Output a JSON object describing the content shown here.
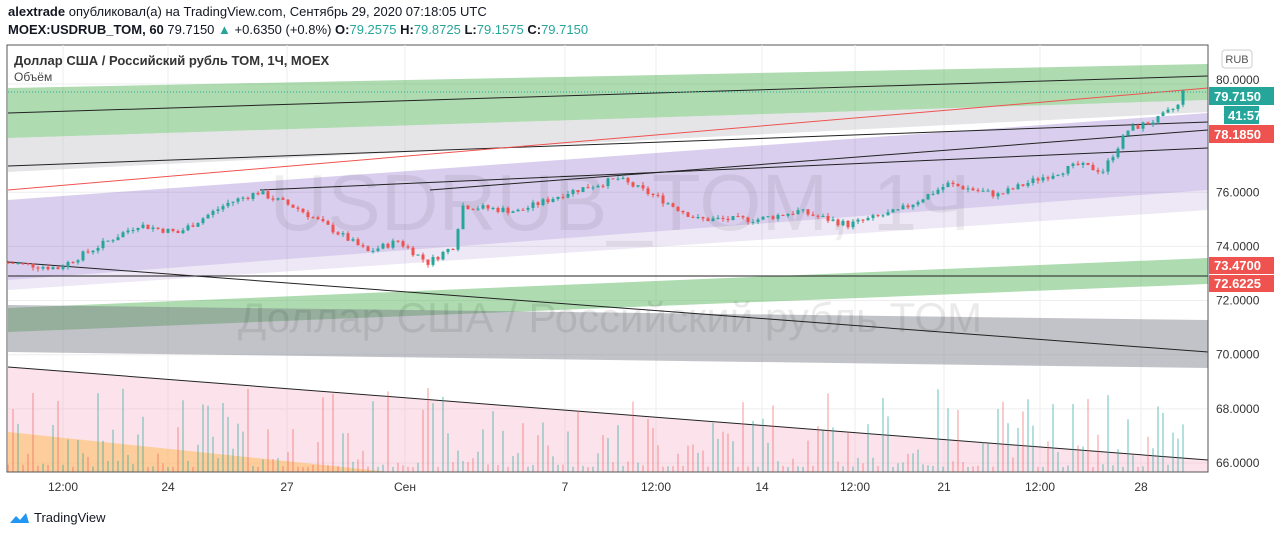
{
  "header": {
    "author": "alextrade",
    "published": "опубликовал(а) на TradingView.com, Сентябрь 29, 2020 07:18:05 UTC",
    "symbol": "MOEX:USDRUB_TOM, 60",
    "last": "79.7150",
    "change": "+0.6350 (+0.8%)",
    "o_label": "O:",
    "o": "79.2575",
    "h_label": "H:",
    "h": "79.8725",
    "l_label": "L:",
    "l": "79.1575",
    "c_label": "C:",
    "c": "79.7150"
  },
  "chart_title": "Доллар США / Российский рубль TOM, 1Ч, MOEX",
  "volume_label": "Объём",
  "watermark_symbol": "USDRUB_TOM, 1Ч",
  "watermark_name": "Доллар США / Российский рубль TOM",
  "currency_button": "RUB",
  "brand": "TradingView",
  "price_labels": {
    "last": "79.7150",
    "countdown": "41:57",
    "red": "78.1850",
    "green1": "73.4700",
    "green2": "72.6225"
  },
  "colors": {
    "up": "#26a69a",
    "down": "#ef5350"
  },
  "chart_data": {
    "type": "candlestick",
    "ylim": [
      66,
      80
    ],
    "yticks": [
      "80.0000",
      "76.0000",
      "74.0000",
      "72.0000",
      "70.0000",
      "68.0000",
      "66.0000"
    ],
    "xticks": [
      "12:00",
      "24",
      "27",
      "Сен",
      "7",
      "12:00",
      "14",
      "12:00",
      "21",
      "12:00",
      "28"
    ],
    "price_path": [
      [
        0,
        73.4
      ],
      [
        10,
        73.2
      ],
      [
        16,
        73.8
      ],
      [
        26,
        74.8
      ],
      [
        34,
        74.5
      ],
      [
        44,
        75.6
      ],
      [
        50,
        76.0
      ],
      [
        58,
        75.4
      ],
      [
        66,
        74.5
      ],
      [
        72,
        73.8
      ],
      [
        78,
        74.2
      ],
      [
        84,
        73.4
      ],
      [
        89,
        74.0
      ],
      [
        91,
        75.5
      ],
      [
        102,
        75.3
      ],
      [
        112,
        76.0
      ],
      [
        122,
        76.5
      ],
      [
        130,
        75.8
      ],
      [
        138,
        75.0
      ],
      [
        150,
        75.0
      ],
      [
        158,
        75.3
      ],
      [
        168,
        74.8
      ],
      [
        178,
        75.3
      ],
      [
        188,
        76.3
      ],
      [
        198,
        75.9
      ],
      [
        206,
        76.5
      ],
      [
        214,
        77.0
      ],
      [
        219,
        76.8
      ],
      [
        224,
        78.3
      ],
      [
        230,
        78.7
      ],
      [
        234,
        79.2
      ],
      [
        235,
        79.7
      ]
    ]
  }
}
